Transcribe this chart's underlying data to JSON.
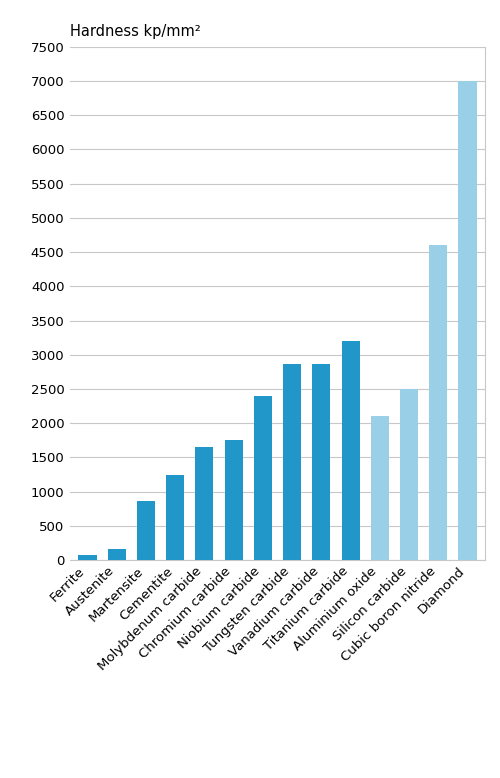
{
  "categories": [
    "Ferrite",
    "Austenite",
    "Martensite",
    "Cementite",
    "Molybdenum carbide",
    "Chromium carbide",
    "Niobium carbide",
    "Tungsten carbide",
    "Vanadium carbide",
    "Titanium carbide",
    "Aluminium oxide",
    "Silicon carbide",
    "Cubic boron nitride",
    "Diamond"
  ],
  "values": [
    80,
    170,
    860,
    1250,
    1650,
    1750,
    2400,
    2870,
    2870,
    3200,
    2100,
    2500,
    4600,
    7000
  ],
  "bar_colors": [
    "#2196C8",
    "#2196C8",
    "#2196C8",
    "#2196C8",
    "#2196C8",
    "#2196C8",
    "#2196C8",
    "#2196C8",
    "#2196C8",
    "#2196C8",
    "#9ACFE8",
    "#9ACFE8",
    "#9ACFE8",
    "#9ACFE8"
  ],
  "title": "Hardness kp/mm²",
  "ylim": [
    0,
    7500
  ],
  "yticks": [
    0,
    500,
    1000,
    1500,
    2000,
    2500,
    3000,
    3500,
    4000,
    4500,
    5000,
    5500,
    6000,
    6500,
    7000,
    7500
  ],
  "background_color": "#ffffff",
  "grid_color": "#c8c8c8",
  "title_fontsize": 10.5,
  "tick_fontsize": 9.5,
  "label_fontsize": 9.5,
  "bar_width": 0.62
}
